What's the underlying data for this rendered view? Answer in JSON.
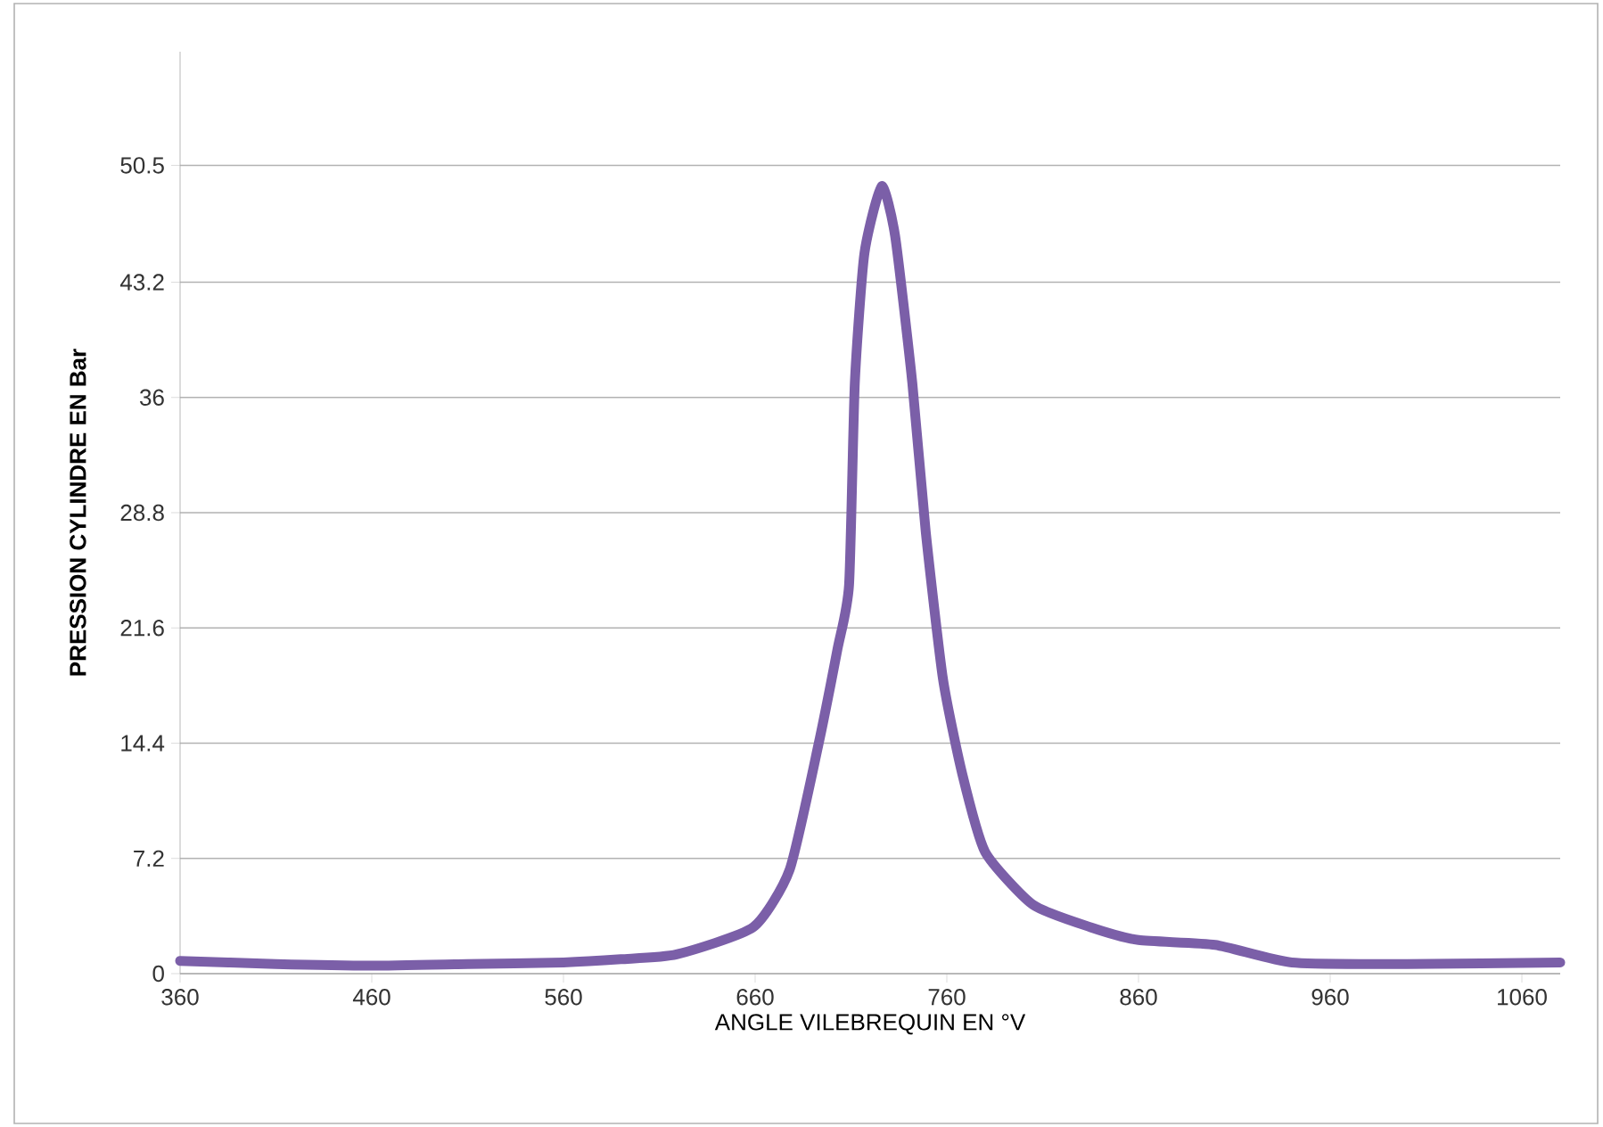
{
  "chart_data": {
    "type": "line",
    "xlabel": "ANGLE VILEBREQUIN EN °V",
    "ylabel": "PRESSION CYLINDRE EN Bar",
    "xlim": [
      360,
      1080
    ],
    "xticks": [
      360,
      460,
      560,
      660,
      760,
      860,
      960,
      1060
    ],
    "ylim": [
      0,
      57.6
    ],
    "yticks": [
      0,
      7.2,
      14.4,
      21.6,
      28.8,
      36,
      43.2,
      50.5
    ],
    "grid": "y",
    "marker": "none",
    "line_style": "solid",
    "series": [
      {
        "color": "#7b5fa8",
        "x": [
          360,
          410,
          460,
          510,
          560,
          590,
          619,
          659,
          678,
          693,
          703,
          709,
          712,
          717,
          726,
          733,
          742,
          749,
          758,
          768,
          780,
          805,
          835,
          860,
          900,
          940,
          1000,
          1080
        ],
        "values": [
          0.8,
          0.6,
          0.5,
          0.6,
          0.7,
          0.9,
          1.2,
          2.9,
          6.5,
          14.3,
          20.3,
          24.3,
          36.9,
          45,
          49.2,
          46.1,
          36.9,
          27.6,
          18.4,
          12.5,
          7.6,
          4.3,
          2.9,
          2.1,
          1.8,
          0.7,
          0.6,
          0.7
        ]
      }
    ]
  }
}
